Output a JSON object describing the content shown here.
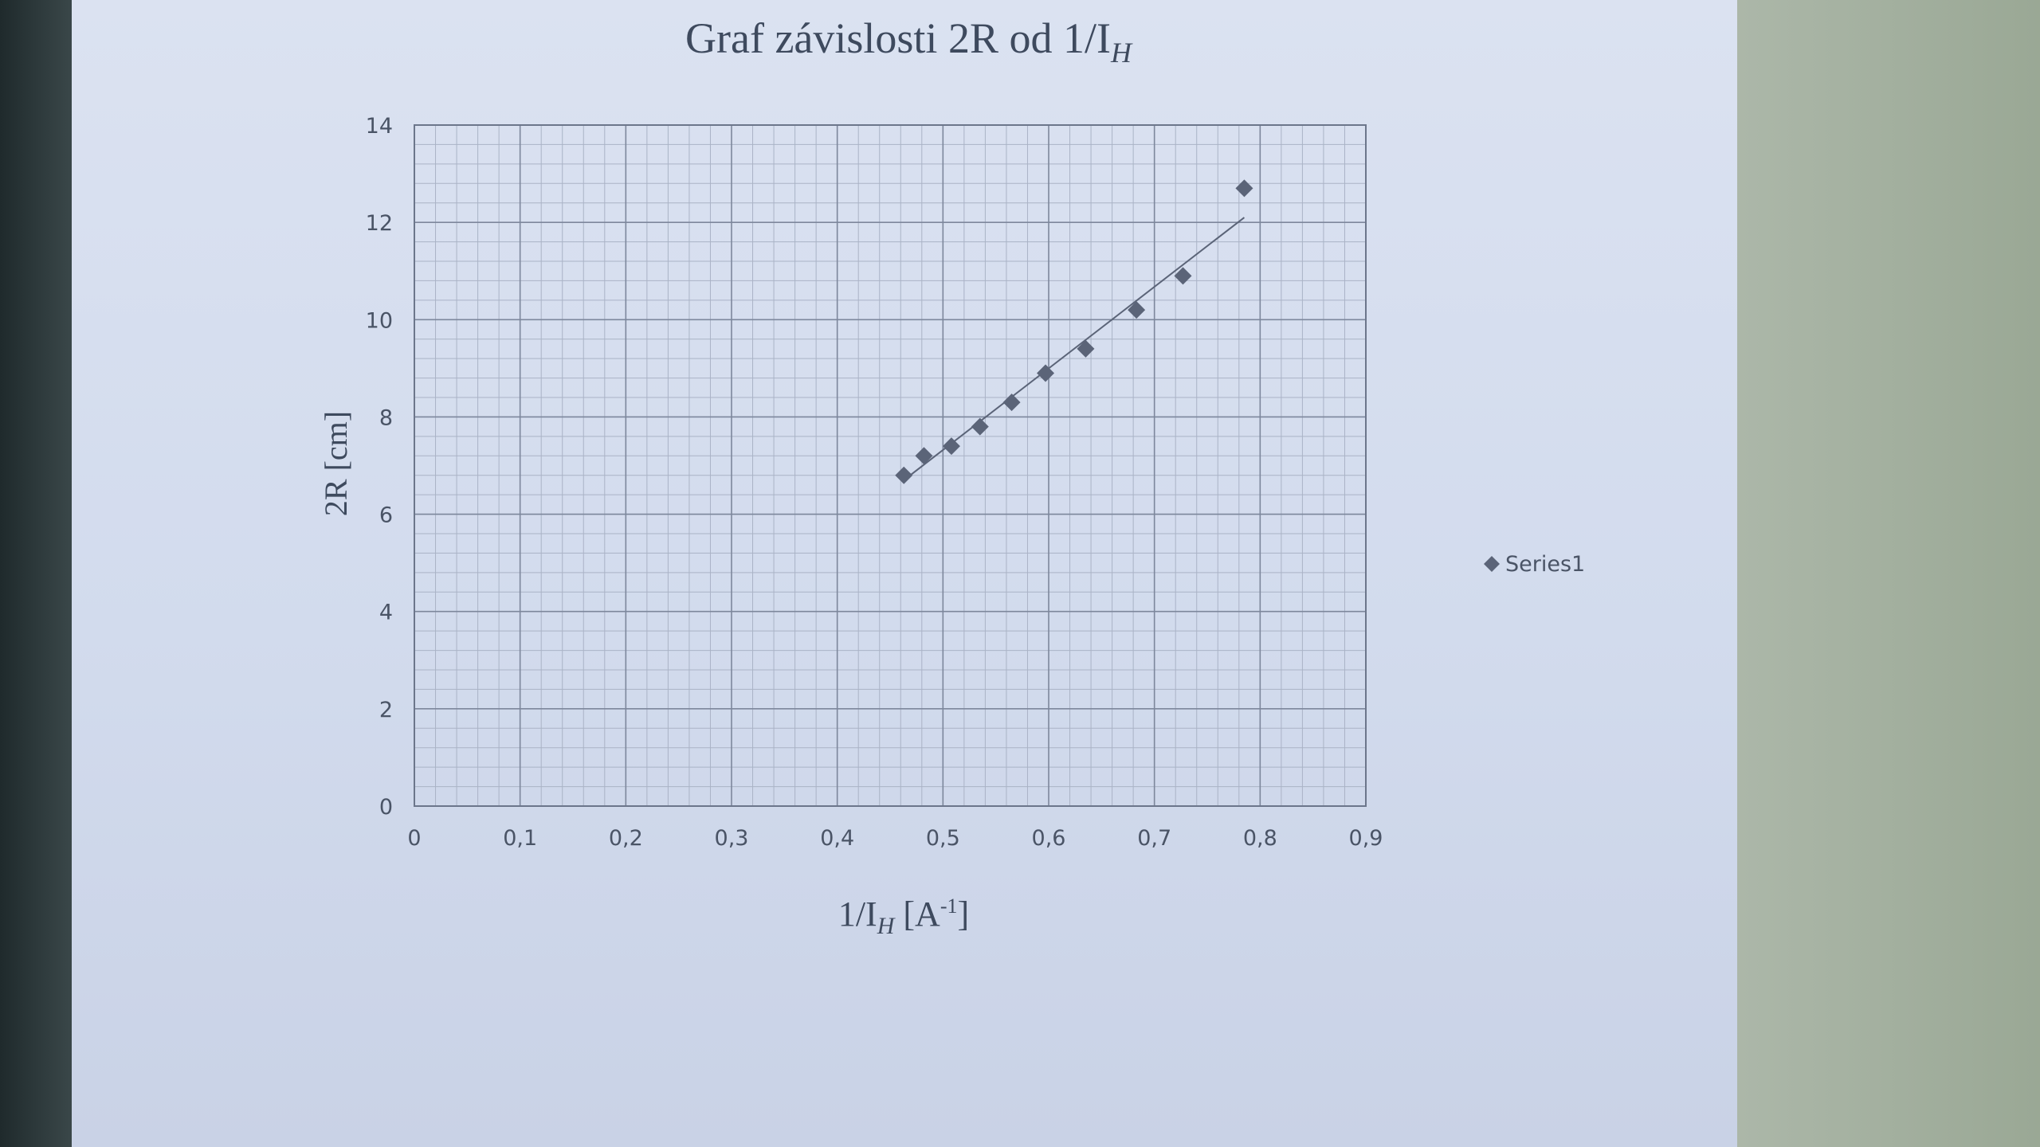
{
  "chart_data": {
    "type": "scatter",
    "title": "Graf závislosti 2R od 1/I",
    "title_subscript": "H",
    "xlabel_prefix": "1/I",
    "xlabel_subscript": "H",
    "xlabel_suffix": " [A",
    "xlabel_superscript": "-1",
    "xlabel_end": "]",
    "ylabel": "2R [cm]",
    "xlim": [
      0,
      0.9
    ],
    "ylim": [
      0,
      14
    ],
    "x_ticks": [
      "0",
      "0,1",
      "0,2",
      "0,3",
      "0,4",
      "0,5",
      "0,6",
      "0,7",
      "0,8",
      "0,9"
    ],
    "y_ticks": [
      "0",
      "2",
      "4",
      "6",
      "8",
      "10",
      "12",
      "14"
    ],
    "grid": true,
    "legend_position": "right",
    "series": [
      {
        "name": "Series1",
        "marker": "diamond",
        "color": "#5b6478",
        "x": [
          0.463,
          0.482,
          0.508,
          0.535,
          0.565,
          0.597,
          0.635,
          0.683,
          0.727,
          0.785
        ],
        "y": [
          6.8,
          7.2,
          7.4,
          7.8,
          8.3,
          8.9,
          9.4,
          10.2,
          10.9,
          12.7
        ]
      }
    ],
    "trendline": {
      "type": "linear",
      "x": [
        0.463,
        0.785
      ],
      "y": [
        6.7,
        12.1
      ],
      "color": "#5b6478"
    }
  }
}
